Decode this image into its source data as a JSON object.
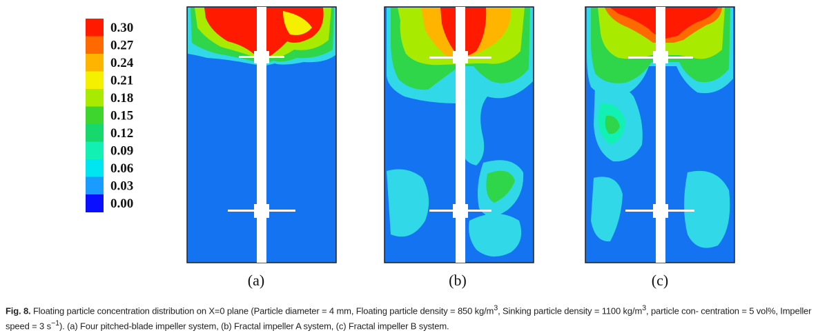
{
  "legend": {
    "ticks": [
      "0.30",
      "0.27",
      "0.24",
      "0.21",
      "0.18",
      "0.15",
      "0.12",
      "0.09",
      "0.06",
      "0.03",
      "0.00"
    ],
    "colors": [
      "#ff1a00",
      "#ff6a00",
      "#ffb400",
      "#f4f000",
      "#a8ea00",
      "#3ed62e",
      "#16d86c",
      "#12f0b4",
      "#00e6f0",
      "#1a9cff",
      "#0a10ff"
    ]
  },
  "panels": [
    {
      "label": "(a)"
    },
    {
      "label": "(b)"
    },
    {
      "label": "(c)"
    }
  ],
  "caption": {
    "fig_number": "Fig. 8.",
    "line1_pre": "Floating particle concentration distribution on X=0 plane (Particle diameter = 4 mm, Floating particle density = 850 kg/m",
    "sup1": "3",
    "line1_mid": ", Sinking particle density = 1100 kg/m",
    "sup2": "3",
    "line1_post": ", particle con-",
    "line2_pre": "centration = 5 vol%, Impeller speed = 3 s",
    "sup3": "−1",
    "line2_post": "). (a) Four pitched-blade impeller system, (b) Fractal impeller A system, (c) Fractal impeller B system."
  }
}
